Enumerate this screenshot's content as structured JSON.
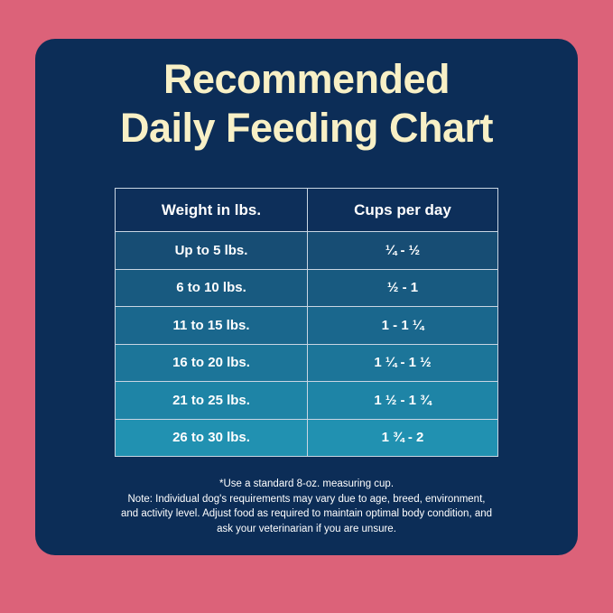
{
  "title_line1": "Recommended",
  "title_line2": "Daily Feeding Chart",
  "table": {
    "headers": [
      "Weight in lbs.",
      "Cups per day"
    ],
    "rows": [
      [
        "Up to 5 lbs.",
        "¼ - ½"
      ],
      [
        "6 to 10 lbs.",
        "½ - 1"
      ],
      [
        "11 to 15 lbs.",
        "1 - 1 ¼"
      ],
      [
        "16 to 20 lbs.",
        "1 ¼ - 1 ½"
      ],
      [
        "21 to 25 lbs.",
        "1 ½ - 1 ¾"
      ],
      [
        "26 to 30 lbs.",
        "1 ¾ - 2"
      ]
    ],
    "row_colors": [
      "#174d74",
      "#185a80",
      "#1a678d",
      "#1c7599",
      "#1e84a6",
      "#2191b1"
    ]
  },
  "notes": [
    "*Use a standard 8-oz. measuring cup.",
    "Note: Individual dog's requirements may vary due to age, breed, environment,",
    "and activity level. Adjust food as required to maintain optimal body condition, and",
    "ask your veterinarian if you are unsure."
  ]
}
